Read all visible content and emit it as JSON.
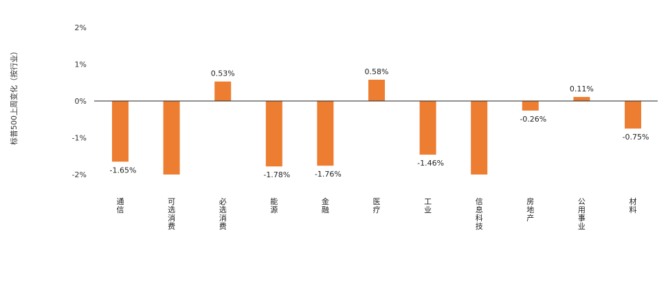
{
  "chart_data": {
    "type": "bar",
    "title": "",
    "xlabel": "",
    "ylabel": "标普500上周变化（按行业）",
    "categories": [
      "通信",
      "可选消费",
      "必选消费",
      "能源",
      "金融",
      "医疗",
      "工业",
      "信息科技",
      "房地产",
      "公用事业",
      "材料"
    ],
    "values": [
      -1.65,
      -2.0,
      0.53,
      -1.78,
      -1.76,
      0.58,
      -1.46,
      -2.0,
      -0.26,
      0.11,
      -0.75
    ],
    "data_labels": [
      "-1.65%",
      "",
      "0.53%",
      "-1.78%",
      "-1.76%",
      "0.58%",
      "-1.46%",
      "",
      "-0.26%",
      "0.11%",
      "-0.75%"
    ],
    "ylim": [
      -2,
      2
    ],
    "yticks": [
      "2%",
      "1%",
      "0%",
      "-1%",
      "-2%"
    ],
    "bar_color": "#ED7D31",
    "grid": false,
    "legend": "none"
  }
}
